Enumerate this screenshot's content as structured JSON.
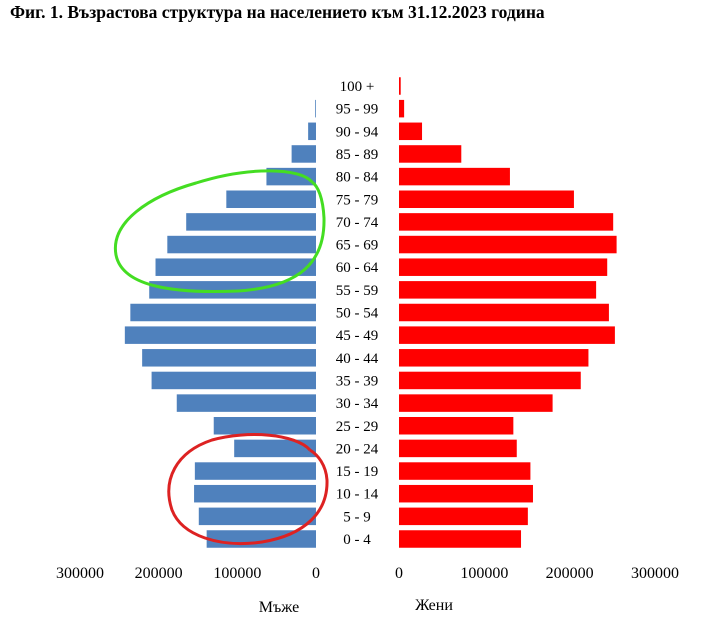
{
  "chart_data": {
    "type": "bar",
    "title": "Фиг. 1. Възрастова структура на населението към 31.12.2023 година",
    "categories": [
      "0 - 4",
      "5 - 9",
      "10 - 14",
      "15 - 19",
      "20 - 24",
      "25 - 29",
      "30 - 34",
      "35 - 39",
      "40 - 44",
      "45 - 49",
      "50 - 54",
      "55 - 59",
      "60 - 64",
      "65 - 69",
      "70 - 74",
      "75 - 79",
      "80 - 84",
      "85 - 89",
      "90 - 94",
      "95 - 99",
      "100 +"
    ],
    "series": [
      {
        "name": "Мъже",
        "color": "#4f81bd",
        "values": [
          139000,
          149000,
          155000,
          154000,
          104000,
          130000,
          177000,
          209000,
          221000,
          243000,
          236000,
          212000,
          204000,
          189000,
          165000,
          114000,
          63000,
          31000,
          10000,
          1000,
          0
        ]
      },
      {
        "name": "Жени",
        "color": "#ff0000",
        "values": [
          143000,
          151000,
          157000,
          154000,
          138000,
          134000,
          180000,
          213000,
          222000,
          253000,
          246000,
          231000,
          244000,
          255000,
          251000,
          205000,
          130000,
          73000,
          27000,
          6000,
          2000
        ]
      }
    ],
    "left_axis": {
      "ticks": [
        300000,
        200000,
        100000,
        0
      ],
      "label": "Мъже"
    },
    "right_axis": {
      "ticks": [
        0,
        100000,
        200000,
        300000
      ],
      "label": "Жени"
    },
    "xlim": [
      0,
      300000
    ],
    "grid": false,
    "annotations": [
      {
        "shape": "ellipse",
        "color": "#44dd22",
        "around": [
          "60 - 64",
          "80 - 84"
        ],
        "side": "Мъже"
      },
      {
        "shape": "ellipse",
        "color": "#dd2222",
        "around": [
          "0 - 4",
          "20 - 24"
        ],
        "side": "Мъже"
      }
    ]
  }
}
